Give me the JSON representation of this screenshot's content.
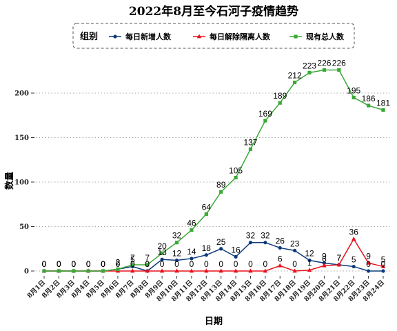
{
  "chart_data": {
    "type": "line",
    "title": "2022年8月至今石河子疫情趋势",
    "xlabel": "日期",
    "ylabel": "数量",
    "ylim": [
      0,
      230
    ],
    "yticks": [
      0,
      50,
      100,
      150,
      200
    ],
    "grid": "horizontal-dotted",
    "legend": {
      "title": "组别",
      "placement": "top-center"
    },
    "categories": [
      "8月1日",
      "8月2日",
      "8月3日",
      "8月4日",
      "8月5日",
      "8月6日",
      "8月7日",
      "8月8日",
      "8月9日",
      "8月10日",
      "8月11日",
      "8月12日",
      "8月13日",
      "8月14日",
      "8月15日",
      "8月16日",
      "8月17日",
      "8月18日",
      "8月19日",
      "8月20日",
      "8月21日",
      "8月22日",
      "8月23日",
      "8月24日"
    ],
    "series": [
      {
        "name": "每日新增人数",
        "color": "#0b3a7a",
        "marker": "circle",
        "values": [
          0,
          0,
          0,
          0,
          0,
          2,
          5,
          0,
          13,
          12,
          14,
          18,
          25,
          16,
          32,
          32,
          26,
          23,
          12,
          9,
          7,
          5,
          0,
          0
        ]
      },
      {
        "name": "每日解除隔离人数",
        "color": "#e8101a",
        "marker": "triangle",
        "values": [
          0,
          0,
          0,
          0,
          0,
          0,
          0,
          0,
          0,
          0,
          0,
          0,
          0,
          0,
          0,
          0,
          6,
          0,
          1,
          6,
          7,
          36,
          9,
          5
        ]
      },
      {
        "name": "现有总人数",
        "color": "#3aa935",
        "marker": "square",
        "values": [
          0,
          0,
          0,
          0,
          0,
          2,
          7,
          7,
          20,
          32,
          46,
          64,
          89,
          105,
          137,
          169,
          189,
          212,
          223,
          226,
          226,
          195,
          186,
          181
        ]
      }
    ]
  }
}
